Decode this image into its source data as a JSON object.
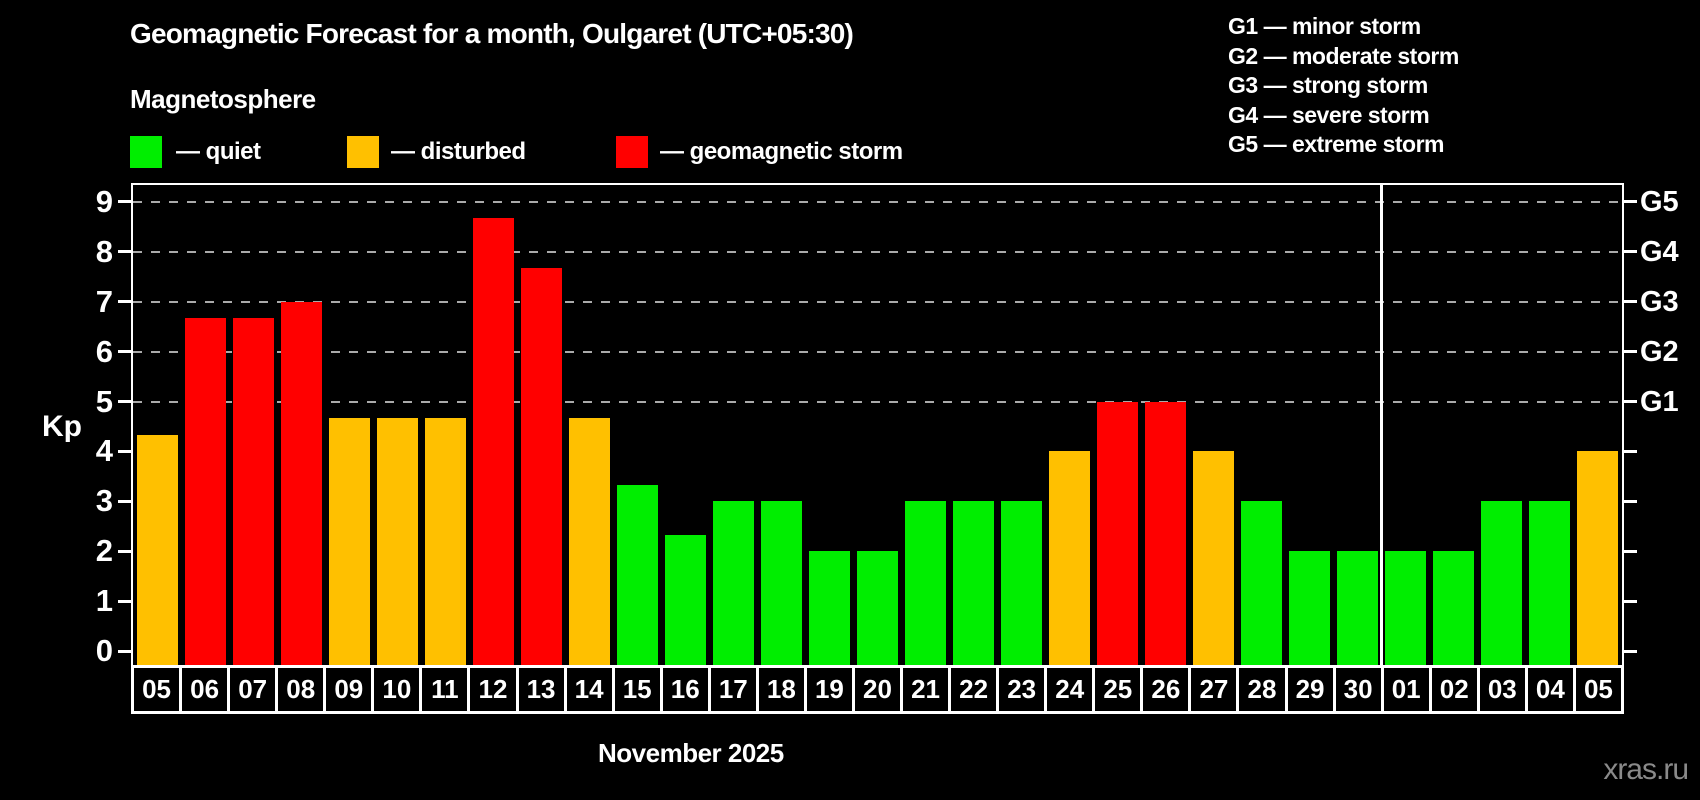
{
  "page": {
    "background": "#000000",
    "watermark": "xras.ru"
  },
  "header": {
    "title": "Geomagnetic Forecast for a month, Oulgaret (UTC+05:30)",
    "subtitle": "Magnetosphere"
  },
  "legend": {
    "items": [
      {
        "label": "— quiet",
        "status": "quiet"
      },
      {
        "label": "— disturbed",
        "status": "disturbed"
      },
      {
        "label": "— geomagnetic storm",
        "status": "storm"
      }
    ]
  },
  "g_scale_legend": {
    "items": [
      "G1 — minor storm",
      "G2 — moderate storm",
      "G3 — strong storm",
      "G4 — severe storm",
      "G5 — extreme storm"
    ]
  },
  "colors": {
    "quiet": "#00ee00",
    "disturbed": "#ffc000",
    "storm": "#ff0000",
    "grid": "#aaaaaa",
    "frame": "#ffffff",
    "watermark": "#8a8a8a"
  },
  "chart_data": {
    "type": "bar",
    "title": "Geomagnetic Forecast for a month, Oulgaret (UTC+05:30)",
    "subtitle": "Magnetosphere",
    "xlabel": "November 2025",
    "ylabel": "Kp",
    "ylim": [
      0,
      9
    ],
    "yticks": [
      0,
      1,
      2,
      3,
      4,
      5,
      6,
      7,
      8,
      9
    ],
    "grid": "dashed horizontal lines at Kp 5,6,7,8,9 only",
    "legend_position": "top-left (status colors) and top-right (G scale)",
    "right_axis": [
      {
        "kp": 5,
        "label": "G1"
      },
      {
        "kp": 6,
        "label": "G2"
      },
      {
        "kp": 7,
        "label": "G3"
      },
      {
        "kp": 8,
        "label": "G4"
      },
      {
        "kp": 9,
        "label": "G5"
      }
    ],
    "month_boundary_after_index": 25,
    "bars": [
      {
        "day": "05",
        "kp": 4.33,
        "status": "disturbed"
      },
      {
        "day": "06",
        "kp": 6.67,
        "status": "storm"
      },
      {
        "day": "07",
        "kp": 6.67,
        "status": "storm"
      },
      {
        "day": "08",
        "kp": 7.0,
        "status": "storm"
      },
      {
        "day": "09",
        "kp": 4.67,
        "status": "disturbed"
      },
      {
        "day": "10",
        "kp": 4.67,
        "status": "disturbed"
      },
      {
        "day": "11",
        "kp": 4.67,
        "status": "disturbed"
      },
      {
        "day": "12",
        "kp": 8.67,
        "status": "storm"
      },
      {
        "day": "13",
        "kp": 7.67,
        "status": "storm"
      },
      {
        "day": "14",
        "kp": 4.67,
        "status": "disturbed"
      },
      {
        "day": "15",
        "kp": 3.33,
        "status": "quiet"
      },
      {
        "day": "16",
        "kp": 2.33,
        "status": "quiet"
      },
      {
        "day": "17",
        "kp": 3.0,
        "status": "quiet"
      },
      {
        "day": "18",
        "kp": 3.0,
        "status": "quiet"
      },
      {
        "day": "19",
        "kp": 2.0,
        "status": "quiet"
      },
      {
        "day": "20",
        "kp": 2.0,
        "status": "quiet"
      },
      {
        "day": "21",
        "kp": 3.0,
        "status": "quiet"
      },
      {
        "day": "22",
        "kp": 3.0,
        "status": "quiet"
      },
      {
        "day": "23",
        "kp": 3.0,
        "status": "quiet"
      },
      {
        "day": "24",
        "kp": 4.0,
        "status": "disturbed"
      },
      {
        "day": "25",
        "kp": 5.0,
        "status": "storm"
      },
      {
        "day": "26",
        "kp": 5.0,
        "status": "storm"
      },
      {
        "day": "27",
        "kp": 4.0,
        "status": "disturbed"
      },
      {
        "day": "28",
        "kp": 3.0,
        "status": "quiet"
      },
      {
        "day": "29",
        "kp": 2.0,
        "status": "quiet"
      },
      {
        "day": "30",
        "kp": 2.0,
        "status": "quiet"
      },
      {
        "day": "01",
        "kp": 2.0,
        "status": "quiet"
      },
      {
        "day": "02",
        "kp": 2.0,
        "status": "quiet"
      },
      {
        "day": "03",
        "kp": 3.0,
        "status": "quiet"
      },
      {
        "day": "04",
        "kp": 3.0,
        "status": "quiet"
      },
      {
        "day": "05",
        "kp": 4.0,
        "status": "disturbed"
      }
    ]
  }
}
